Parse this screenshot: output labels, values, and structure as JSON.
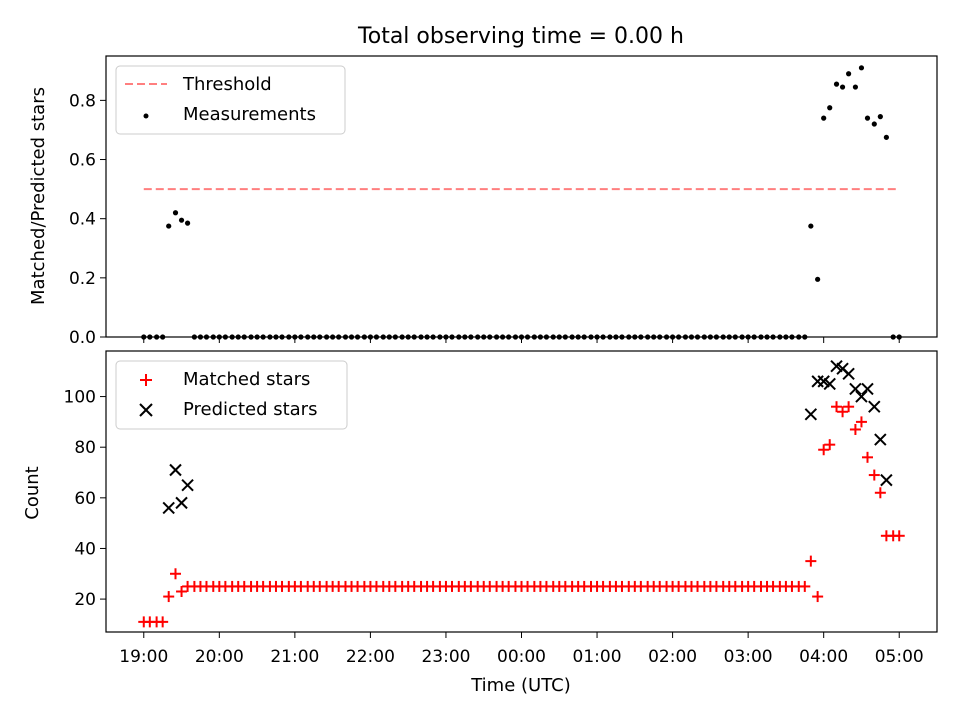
{
  "figure": {
    "title": "Total observing time = 0.00 h",
    "xlabel": "Time (UTC)"
  },
  "chart_data": [
    {
      "type": "scatter",
      "panel": "top",
      "title": "Total observing time = 0.00 h",
      "xlabel": "Time (UTC)",
      "ylabel": "Matched/Predicted stars",
      "xlim_hours": [
        18.5,
        29.5
      ],
      "ylim": [
        0,
        0.95
      ],
      "xticks": [
        19,
        20,
        21,
        22,
        23,
        24,
        25,
        26,
        27,
        28,
        29
      ],
      "xtick_labels": [
        "19:00",
        "20:00",
        "21:00",
        "22:00",
        "23:00",
        "00:00",
        "01:00",
        "02:00",
        "03:00",
        "04:00",
        "05:00"
      ],
      "yticks": [
        0.0,
        0.2,
        0.4,
        0.6,
        0.8
      ],
      "ytick_labels": [
        "0.0",
        "0.2",
        "0.4",
        "0.6",
        "0.8"
      ],
      "legend": {
        "position": "upper-left",
        "entries": [
          "Threshold",
          "Measurements"
        ]
      },
      "threshold": {
        "name": "Threshold",
        "y": 0.5,
        "x_range": [
          19.0,
          29.0
        ],
        "color": "#ff7f7f",
        "style": "dashed"
      },
      "series": [
        {
          "name": "Measurements",
          "color": "#000000",
          "marker": "dot",
          "points": [
            [
              19.0,
              0
            ],
            [
              19.08,
              0
            ],
            [
              19.17,
              0
            ],
            [
              19.25,
              0
            ],
            [
              19.33,
              0.375
            ],
            [
              19.42,
              0.42
            ],
            [
              19.5,
              0.395
            ],
            [
              19.58,
              0.385
            ],
            [
              19.67,
              0
            ],
            [
              19.75,
              0
            ],
            [
              19.83,
              0
            ],
            [
              19.92,
              0
            ],
            [
              20.0,
              0
            ],
            [
              20.08,
              0
            ],
            [
              20.17,
              0
            ],
            [
              20.25,
              0
            ],
            [
              20.33,
              0
            ],
            [
              20.42,
              0
            ],
            [
              20.5,
              0
            ],
            [
              20.58,
              0
            ],
            [
              20.67,
              0
            ],
            [
              20.75,
              0
            ],
            [
              20.83,
              0
            ],
            [
              20.92,
              0
            ],
            [
              21.0,
              0
            ],
            [
              21.08,
              0
            ],
            [
              21.17,
              0
            ],
            [
              21.25,
              0
            ],
            [
              21.33,
              0
            ],
            [
              21.42,
              0
            ],
            [
              21.5,
              0
            ],
            [
              21.58,
              0
            ],
            [
              21.67,
              0
            ],
            [
              21.75,
              0
            ],
            [
              21.83,
              0
            ],
            [
              21.92,
              0
            ],
            [
              22.0,
              0
            ],
            [
              22.08,
              0
            ],
            [
              22.17,
              0
            ],
            [
              22.25,
              0
            ],
            [
              22.33,
              0
            ],
            [
              22.42,
              0
            ],
            [
              22.5,
              0
            ],
            [
              22.58,
              0
            ],
            [
              22.67,
              0
            ],
            [
              22.75,
              0
            ],
            [
              22.83,
              0
            ],
            [
              22.92,
              0
            ],
            [
              23.0,
              0
            ],
            [
              23.08,
              0
            ],
            [
              23.17,
              0
            ],
            [
              23.25,
              0
            ],
            [
              23.33,
              0
            ],
            [
              23.42,
              0
            ],
            [
              23.5,
              0
            ],
            [
              23.58,
              0
            ],
            [
              23.67,
              0
            ],
            [
              23.75,
              0
            ],
            [
              23.83,
              0
            ],
            [
              23.92,
              0
            ],
            [
              24.0,
              0
            ],
            [
              24.08,
              0
            ],
            [
              24.17,
              0
            ],
            [
              24.25,
              0
            ],
            [
              24.33,
              0
            ],
            [
              24.42,
              0
            ],
            [
              24.5,
              0
            ],
            [
              24.58,
              0
            ],
            [
              24.67,
              0
            ],
            [
              24.75,
              0
            ],
            [
              24.83,
              0
            ],
            [
              24.92,
              0
            ],
            [
              25.0,
              0
            ],
            [
              25.08,
              0
            ],
            [
              25.17,
              0
            ],
            [
              25.25,
              0
            ],
            [
              25.33,
              0
            ],
            [
              25.42,
              0
            ],
            [
              25.5,
              0
            ],
            [
              25.58,
              0
            ],
            [
              25.67,
              0
            ],
            [
              25.75,
              0
            ],
            [
              25.83,
              0
            ],
            [
              25.92,
              0
            ],
            [
              26.0,
              0
            ],
            [
              26.08,
              0
            ],
            [
              26.17,
              0
            ],
            [
              26.25,
              0
            ],
            [
              26.33,
              0
            ],
            [
              26.42,
              0
            ],
            [
              26.5,
              0
            ],
            [
              26.58,
              0
            ],
            [
              26.67,
              0
            ],
            [
              26.75,
              0
            ],
            [
              26.83,
              0
            ],
            [
              26.92,
              0
            ],
            [
              27.0,
              0
            ],
            [
              27.08,
              0
            ],
            [
              27.17,
              0
            ],
            [
              27.25,
              0
            ],
            [
              27.33,
              0
            ],
            [
              27.42,
              0
            ],
            [
              27.5,
              0
            ],
            [
              27.58,
              0
            ],
            [
              27.67,
              0
            ],
            [
              27.75,
              0
            ],
            [
              27.83,
              0.375
            ],
            [
              27.92,
              0.195
            ],
            [
              28.0,
              0.74
            ],
            [
              28.08,
              0.775
            ],
            [
              28.17,
              0.855
            ],
            [
              28.25,
              0.845
            ],
            [
              28.33,
              0.89
            ],
            [
              28.42,
              0.845
            ],
            [
              28.5,
              0.91
            ],
            [
              28.58,
              0.74
            ],
            [
              28.67,
              0.72
            ],
            [
              28.75,
              0.745
            ],
            [
              28.83,
              0.675
            ],
            [
              28.92,
              0
            ],
            [
              29.0,
              0
            ]
          ]
        }
      ]
    },
    {
      "type": "scatter",
      "panel": "bottom",
      "xlabel": "Time (UTC)",
      "ylabel": "Count",
      "xlim_hours": [
        18.5,
        29.5
      ],
      "ylim": [
        7,
        118
      ],
      "xticks": [
        19,
        20,
        21,
        22,
        23,
        24,
        25,
        26,
        27,
        28,
        29
      ],
      "xtick_labels": [
        "19:00",
        "20:00",
        "21:00",
        "22:00",
        "23:00",
        "00:00",
        "01:00",
        "02:00",
        "03:00",
        "04:00",
        "05:00"
      ],
      "yticks": [
        20,
        40,
        60,
        80,
        100
      ],
      "ytick_labels": [
        "20",
        "40",
        "60",
        "80",
        "100"
      ],
      "legend": {
        "position": "upper-left",
        "entries": [
          "Matched stars",
          "Predicted stars"
        ]
      },
      "series": [
        {
          "name": "Matched stars",
          "color": "#ff0000",
          "marker": "plus",
          "points": [
            [
              19.0,
              11
            ],
            [
              19.08,
              11
            ],
            [
              19.17,
              11
            ],
            [
              19.25,
              11
            ],
            [
              19.33,
              21
            ],
            [
              19.42,
              30
            ],
            [
              19.5,
              23
            ],
            [
              19.58,
              25
            ],
            [
              19.67,
              25
            ],
            [
              19.75,
              25
            ],
            [
              19.83,
              25
            ],
            [
              19.92,
              25
            ],
            [
              20.0,
              25
            ],
            [
              20.08,
              25
            ],
            [
              20.17,
              25
            ],
            [
              20.25,
              25
            ],
            [
              20.33,
              25
            ],
            [
              20.42,
              25
            ],
            [
              20.5,
              25
            ],
            [
              20.58,
              25
            ],
            [
              20.67,
              25
            ],
            [
              20.75,
              25
            ],
            [
              20.83,
              25
            ],
            [
              20.92,
              25
            ],
            [
              21.0,
              25
            ],
            [
              21.08,
              25
            ],
            [
              21.17,
              25
            ],
            [
              21.25,
              25
            ],
            [
              21.33,
              25
            ],
            [
              21.42,
              25
            ],
            [
              21.5,
              25
            ],
            [
              21.58,
              25
            ],
            [
              21.67,
              25
            ],
            [
              21.75,
              25
            ],
            [
              21.83,
              25
            ],
            [
              21.92,
              25
            ],
            [
              22.0,
              25
            ],
            [
              22.08,
              25
            ],
            [
              22.17,
              25
            ],
            [
              22.25,
              25
            ],
            [
              22.33,
              25
            ],
            [
              22.42,
              25
            ],
            [
              22.5,
              25
            ],
            [
              22.58,
              25
            ],
            [
              22.67,
              25
            ],
            [
              22.75,
              25
            ],
            [
              22.83,
              25
            ],
            [
              22.92,
              25
            ],
            [
              23.0,
              25
            ],
            [
              23.08,
              25
            ],
            [
              23.17,
              25
            ],
            [
              23.25,
              25
            ],
            [
              23.33,
              25
            ],
            [
              23.42,
              25
            ],
            [
              23.5,
              25
            ],
            [
              23.58,
              25
            ],
            [
              23.67,
              25
            ],
            [
              23.75,
              25
            ],
            [
              23.83,
              25
            ],
            [
              23.92,
              25
            ],
            [
              24.0,
              25
            ],
            [
              24.08,
              25
            ],
            [
              24.17,
              25
            ],
            [
              24.25,
              25
            ],
            [
              24.33,
              25
            ],
            [
              24.42,
              25
            ],
            [
              24.5,
              25
            ],
            [
              24.58,
              25
            ],
            [
              24.67,
              25
            ],
            [
              24.75,
              25
            ],
            [
              24.83,
              25
            ],
            [
              24.92,
              25
            ],
            [
              25.0,
              25
            ],
            [
              25.08,
              25
            ],
            [
              25.17,
              25
            ],
            [
              25.25,
              25
            ],
            [
              25.33,
              25
            ],
            [
              25.42,
              25
            ],
            [
              25.5,
              25
            ],
            [
              25.58,
              25
            ],
            [
              25.67,
              25
            ],
            [
              25.75,
              25
            ],
            [
              25.83,
              25
            ],
            [
              25.92,
              25
            ],
            [
              26.0,
              25
            ],
            [
              26.08,
              25
            ],
            [
              26.17,
              25
            ],
            [
              26.25,
              25
            ],
            [
              26.33,
              25
            ],
            [
              26.42,
              25
            ],
            [
              26.5,
              25
            ],
            [
              26.58,
              25
            ],
            [
              26.67,
              25
            ],
            [
              26.75,
              25
            ],
            [
              26.83,
              25
            ],
            [
              26.92,
              25
            ],
            [
              27.0,
              25
            ],
            [
              27.08,
              25
            ],
            [
              27.17,
              25
            ],
            [
              27.25,
              25
            ],
            [
              27.33,
              25
            ],
            [
              27.42,
              25
            ],
            [
              27.5,
              25
            ],
            [
              27.58,
              25
            ],
            [
              27.67,
              25
            ],
            [
              27.75,
              25
            ],
            [
              27.83,
              35
            ],
            [
              27.92,
              21
            ],
            [
              28.0,
              79
            ],
            [
              28.08,
              81
            ],
            [
              28.17,
              96
            ],
            [
              28.25,
              94
            ],
            [
              28.33,
              96
            ],
            [
              28.42,
              87
            ],
            [
              28.5,
              90
            ],
            [
              28.58,
              76
            ],
            [
              28.67,
              69
            ],
            [
              28.75,
              62
            ],
            [
              28.83,
              45
            ],
            [
              28.92,
              45
            ],
            [
              29.0,
              45
            ]
          ]
        },
        {
          "name": "Predicted stars",
          "color": "#000000",
          "marker": "x",
          "points": [
            [
              19.33,
              56
            ],
            [
              19.42,
              71
            ],
            [
              19.5,
              58
            ],
            [
              19.58,
              65
            ],
            [
              27.83,
              93
            ],
            [
              27.92,
              106
            ],
            [
              28.0,
              106
            ],
            [
              28.08,
              105
            ],
            [
              28.17,
              112
            ],
            [
              28.25,
              111
            ],
            [
              28.33,
              109
            ],
            [
              28.42,
              103
            ],
            [
              28.5,
              100
            ],
            [
              28.58,
              103
            ],
            [
              28.67,
              96
            ],
            [
              28.75,
              83
            ],
            [
              28.83,
              67
            ]
          ]
        }
      ]
    }
  ]
}
